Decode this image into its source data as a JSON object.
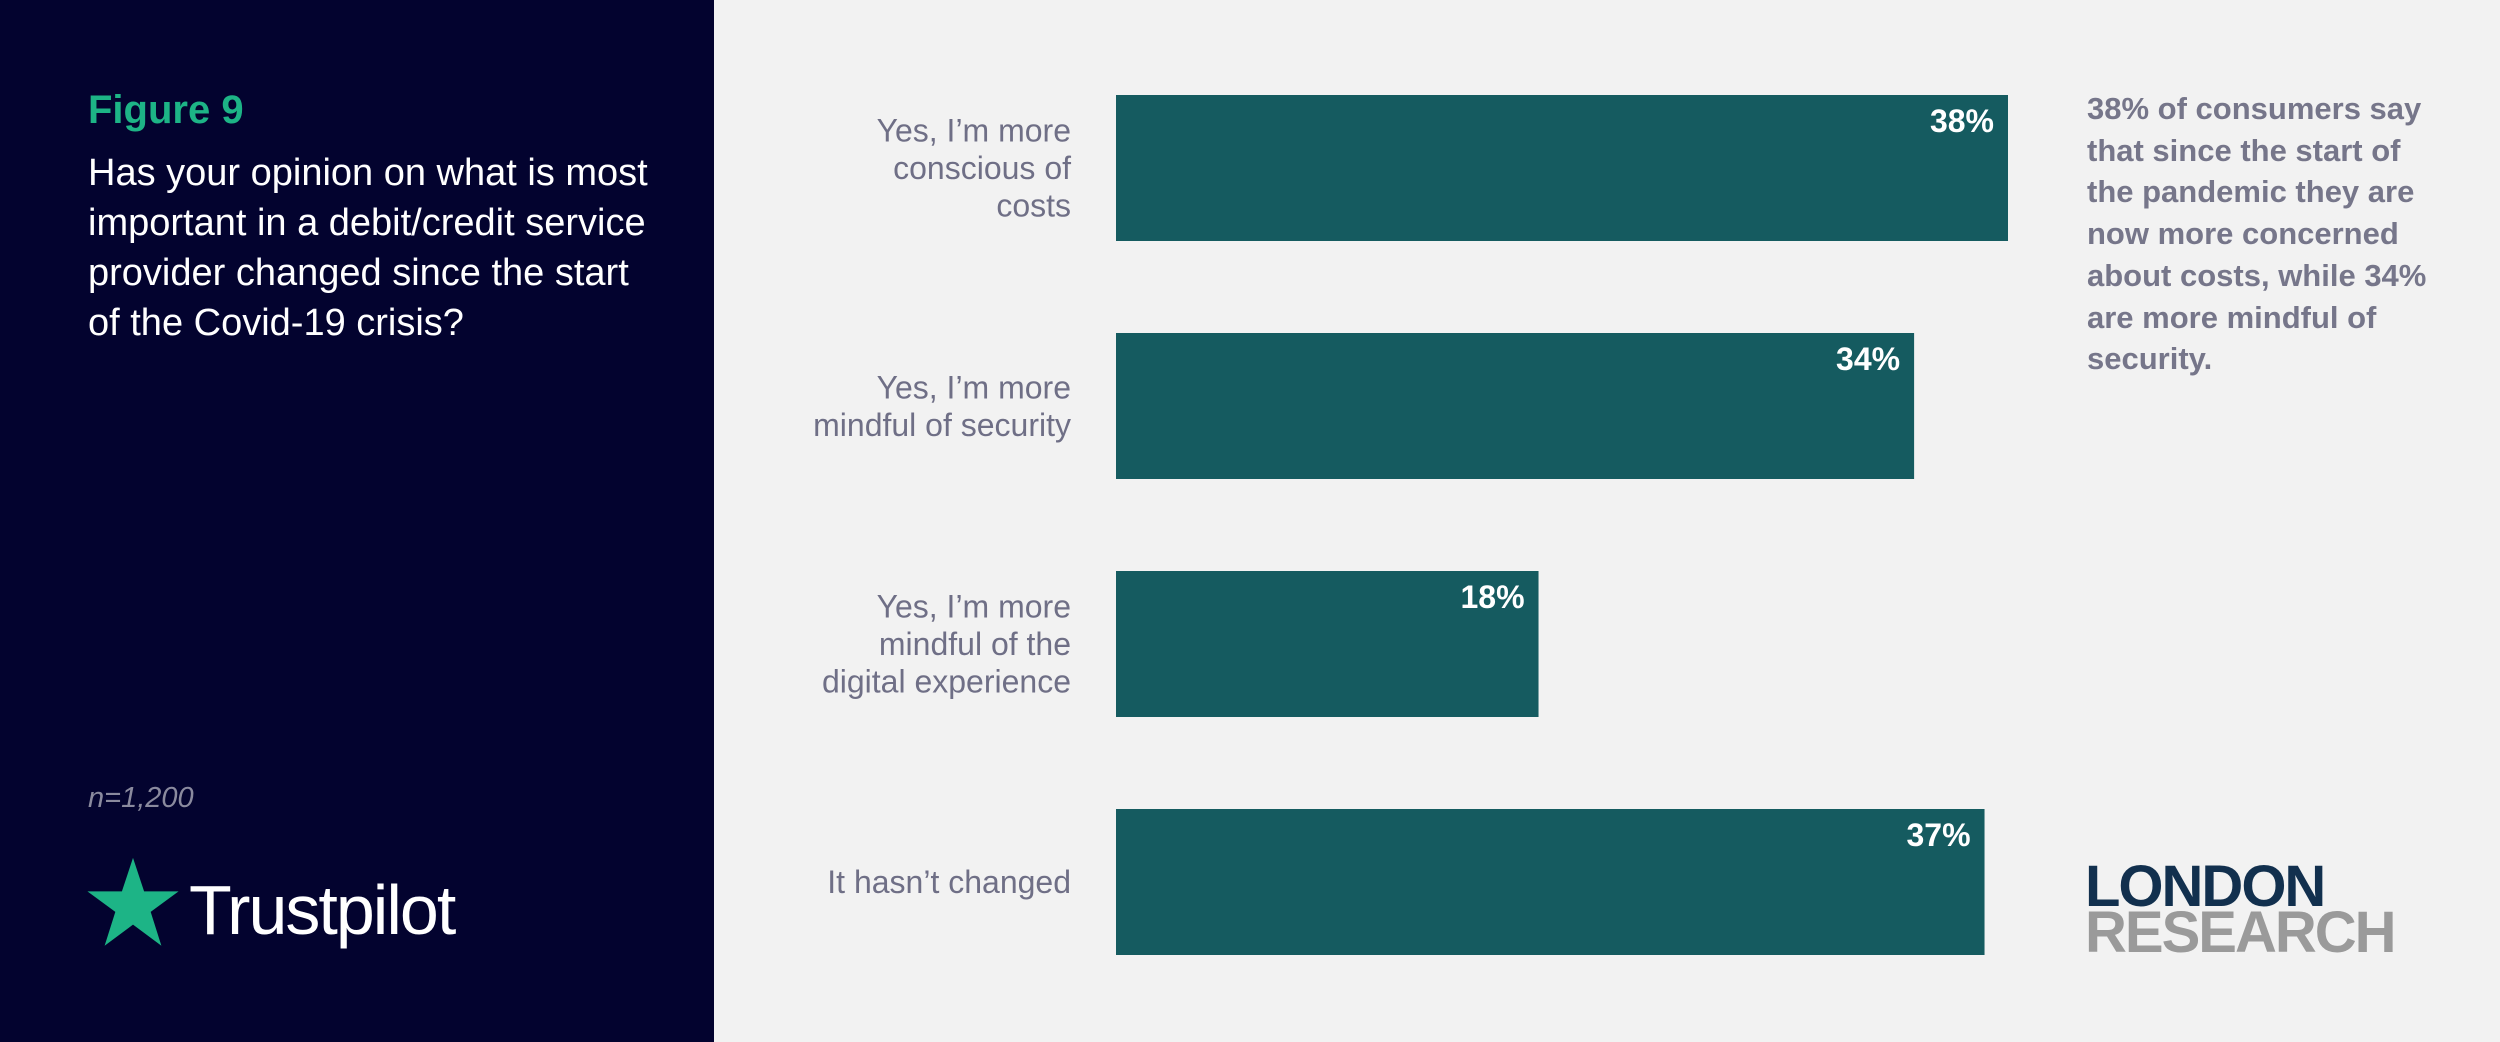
{
  "figure_label": "Figure 9",
  "question": "Has your opinion on what is most important in a debit/credit service provider changed since the start of the Covid-19 crisis?",
  "sample_size": "n=1,200",
  "annotation": "38% of consumers say that since the start of the pandemic they are now more concerned about costs, while 34% are more mindful of security.",
  "logos": {
    "trustpilot": "Trustpilot",
    "london_research": {
      "line1": "LONDON",
      "line2": "RESEARCH"
    }
  },
  "colors": {
    "panel": "#03032f",
    "accent": "#1db486",
    "bar": "#155b60",
    "category_text": "#6f6f86",
    "background": "#f2f2f2"
  },
  "chart_data": {
    "type": "bar",
    "orientation": "horizontal",
    "categories": [
      "Yes, I’m more conscious of costs",
      "Yes, I’m more mindful of security",
      "Yes, I’m more mindful of the digital experience",
      "It hasn’t changed"
    ],
    "values": [
      38,
      34,
      18,
      37
    ],
    "value_labels": [
      "38%",
      "34%",
      "18%",
      "37%"
    ],
    "unit": "%",
    "xlim": [
      0,
      38
    ],
    "grid": false,
    "legend": "none"
  }
}
